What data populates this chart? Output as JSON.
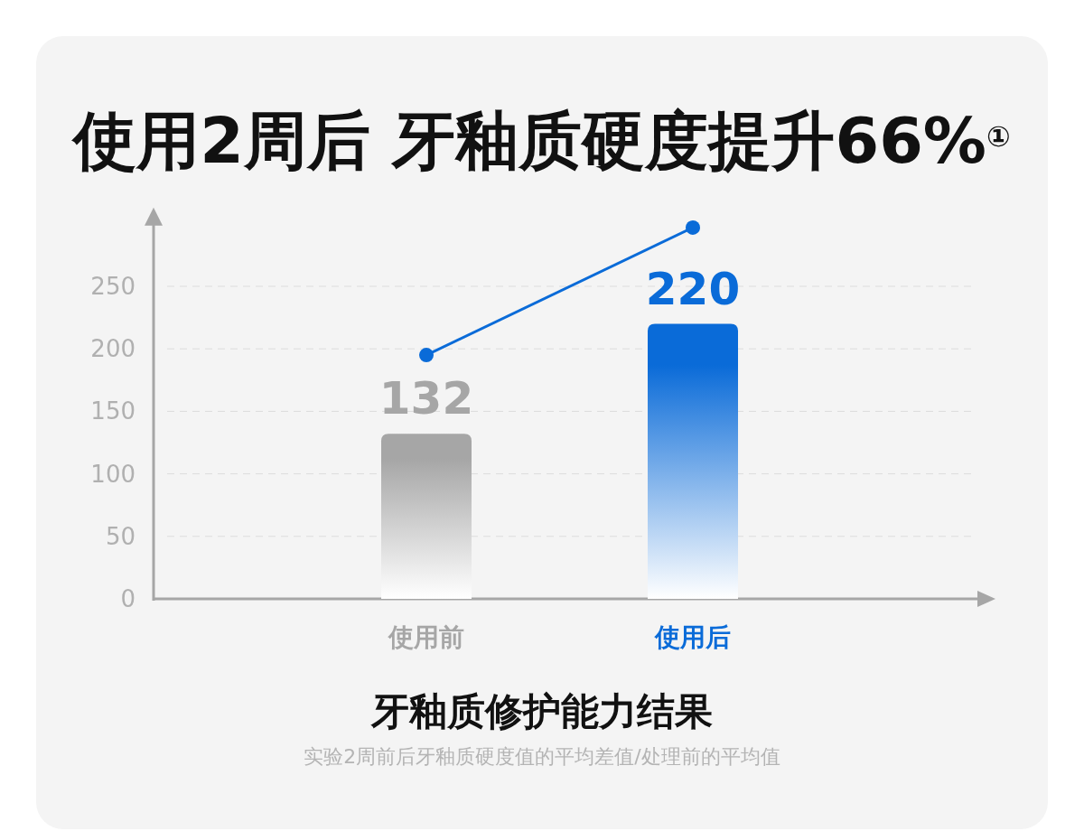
{
  "chart_data": {
    "type": "bar",
    "title": "使用2周后 牙釉质硬度提升66%$^{①}$",
    "subtitle": "牙釉质修护能力结果",
    "annotations": [
      "实验2周前后牙釉质硬度值的平均差值/处理前的平均值"
    ],
    "categories": [
      "使用前",
      "使用后"
    ],
    "series": [
      {
        "colors": [
          "#a6a6a6",
          "#0a6bd8"
        ],
        "values": [
          132,
          220
        ],
        "value_labels": [
          "132",
          "220"
        ]
      },
      {
        "type": "line",
        "color": "#0a6bd8",
        "values": [
          195,
          297
        ],
        "marker": "circle"
      }
    ],
    "ylim": [
      0,
      300
    ],
    "yticks": [
      0,
      50,
      100,
      150,
      200,
      250
    ],
    "grid": "y"
  }
}
